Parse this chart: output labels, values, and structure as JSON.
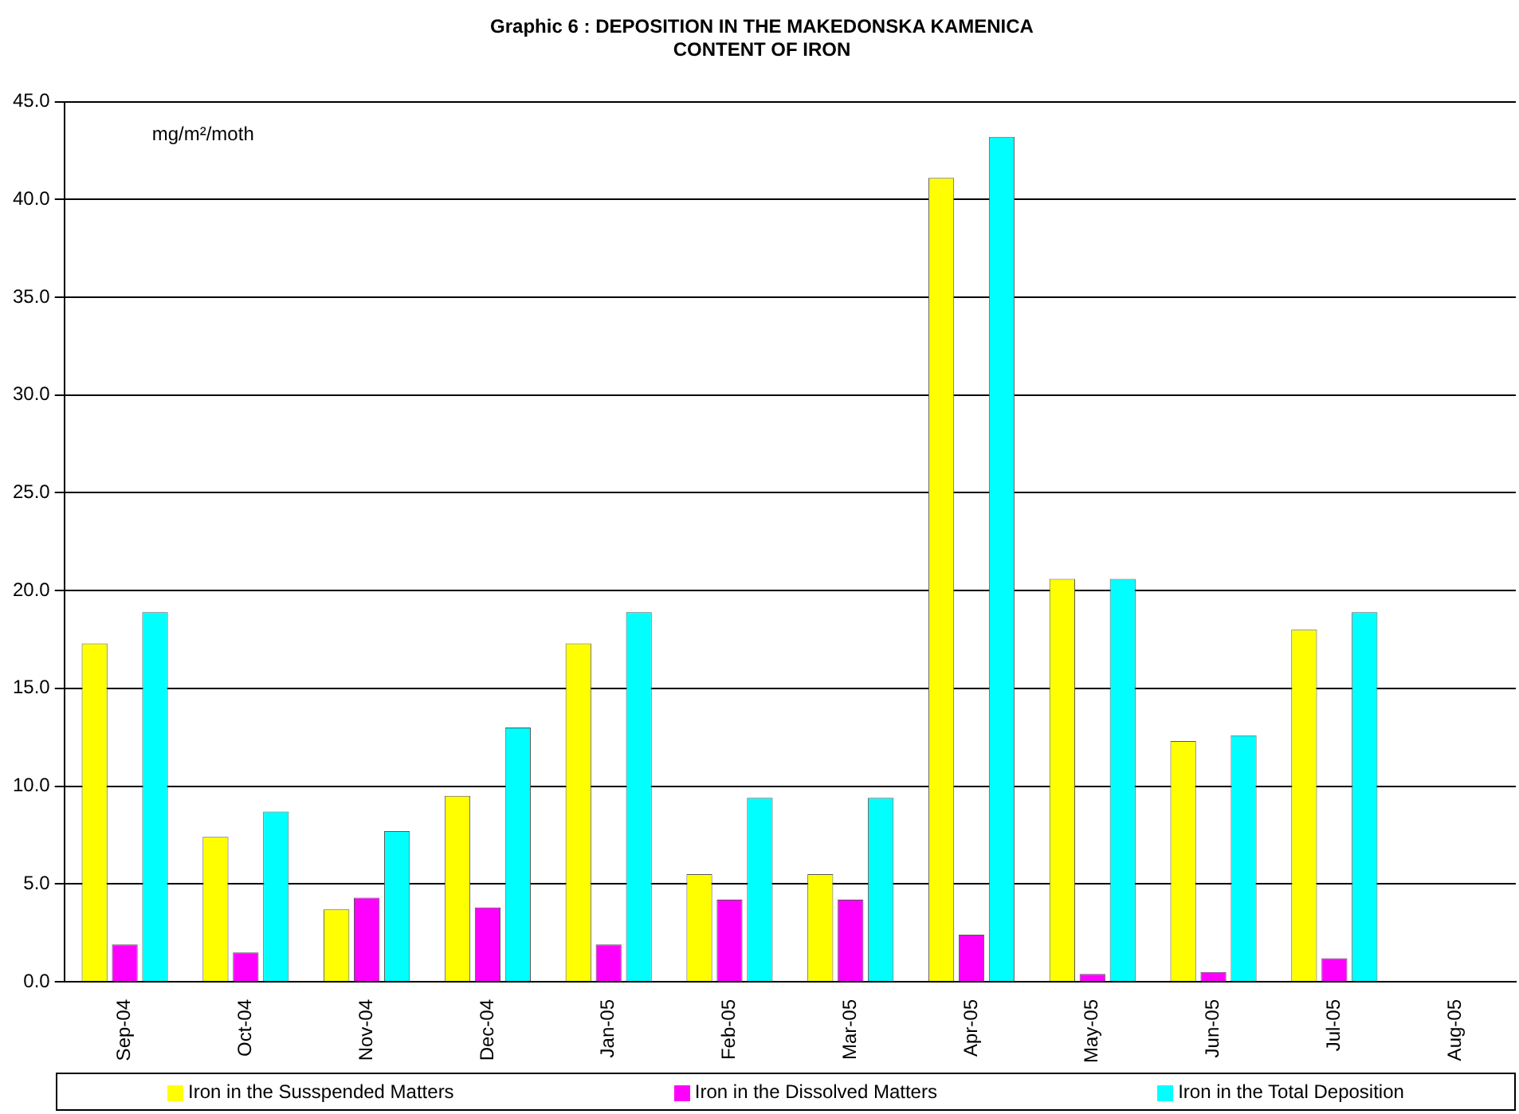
{
  "chart_data": {
    "type": "bar",
    "title": [
      "Graphic 6 : DEPOSITION IN THE MAKEDONSKA KAMENICA",
      "CONTENT OF IRON"
    ],
    "categories": [
      "Sep-04",
      "Oct-04",
      "Nov-04",
      "Dec-04",
      "Jan-05",
      "Feb-05",
      "Mar-05",
      "Apr-05",
      "May-05",
      "Jun-05",
      "Jul-05",
      "Aug-05"
    ],
    "series": [
      {
        "name": "Iron in the Susspended Matters",
        "color": "#ffff00",
        "values": [
          17.3,
          7.4,
          3.7,
          9.5,
          17.3,
          5.5,
          5.5,
          41.1,
          20.6,
          12.3,
          18.0,
          0
        ]
      },
      {
        "name": "Iron in the Dissolved Matters",
        "color": "#ff00ff",
        "values": [
          1.9,
          1.5,
          4.3,
          3.8,
          1.9,
          4.2,
          4.2,
          2.4,
          0.4,
          0.5,
          1.2,
          null
        ]
      },
      {
        "name": "Iron in the Total Deposition",
        "color": "#00ffff",
        "values": [
          18.9,
          8.7,
          7.7,
          13.0,
          18.9,
          9.4,
          9.4,
          43.2,
          20.6,
          12.6,
          18.9,
          null
        ]
      }
    ],
    "ylim": [
      0,
      45
    ],
    "yticks": [
      {
        "value": 0,
        "label": "0.0"
      },
      {
        "value": 5,
        "label": "5.0"
      },
      {
        "value": 10,
        "label": "10.0"
      },
      {
        "value": 15,
        "label": "15.0"
      },
      {
        "value": 20,
        "label": "20.0"
      },
      {
        "value": 25,
        "label": "25.0"
      },
      {
        "value": 30,
        "label": "30.0"
      },
      {
        "value": 35,
        "label": "35.0"
      },
      {
        "value": 40,
        "label": "40.0"
      },
      {
        "value": 45,
        "label": "45.0"
      }
    ],
    "annotations": [
      "mg/m²/moth"
    ],
    "grid": "y",
    "legend": "bottom"
  }
}
